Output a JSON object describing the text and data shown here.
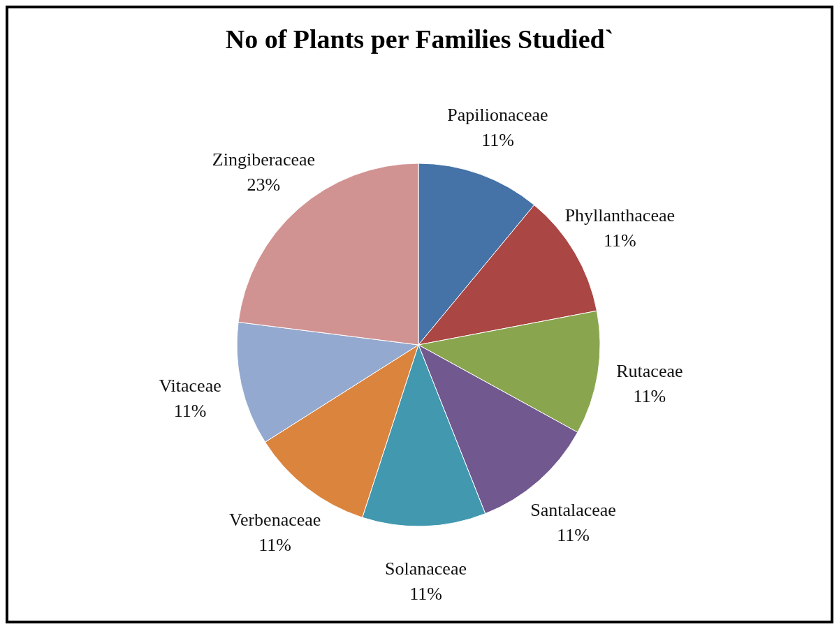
{
  "chart_data": {
    "type": "pie",
    "title": "No of Plants per Families Studied`",
    "categories": [
      "Papilionaceae",
      "Phyllanthaceae",
      "Rutaceae",
      "Santalaceae",
      "Solanaceae",
      "Verbenaceae",
      "Vitaceae",
      "Zingiberaceae"
    ],
    "values": [
      11,
      11,
      11,
      11,
      11,
      11,
      11,
      23
    ],
    "value_labels": [
      "11%",
      "11%",
      "11%",
      "11%",
      "11%",
      "11%",
      "11%",
      "23%"
    ],
    "colors": [
      "#4572a7",
      "#aa4643",
      "#89a54e",
      "#71588f",
      "#4198af",
      "#db843d",
      "#93a9cf",
      "#d19392"
    ],
    "legend": false
  }
}
